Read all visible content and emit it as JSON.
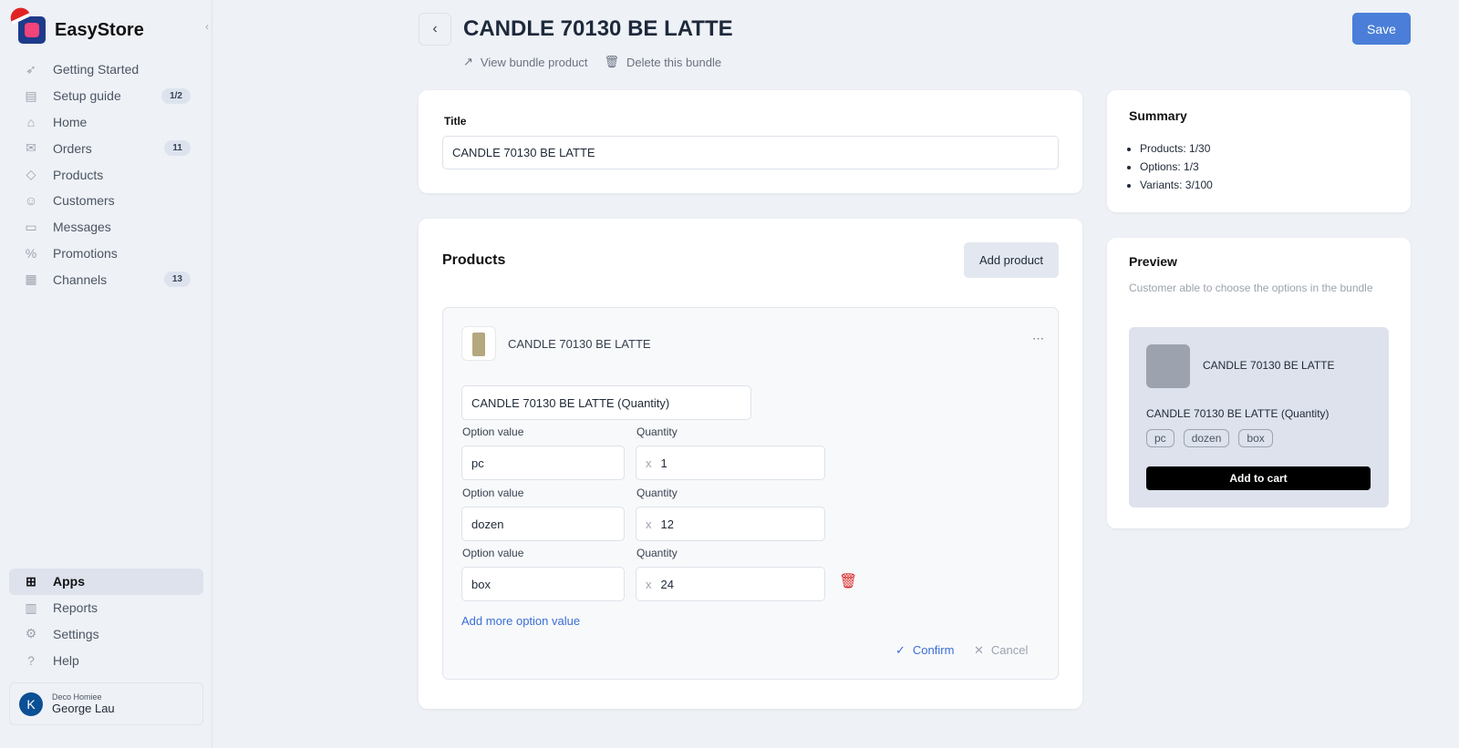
{
  "brand": {
    "name": "EasyStore"
  },
  "sidebar": {
    "items": [
      {
        "label": "Getting Started",
        "icon": "rocket-icon"
      },
      {
        "label": "Setup guide",
        "icon": "checklist-icon",
        "badge": "1/2"
      },
      {
        "label": "Home",
        "icon": "home-icon"
      },
      {
        "label": "Orders",
        "icon": "inbox-icon",
        "badge": "11"
      },
      {
        "label": "Products",
        "icon": "tag-icon"
      },
      {
        "label": "Customers",
        "icon": "user-icon"
      },
      {
        "label": "Messages",
        "icon": "chat-icon"
      },
      {
        "label": "Promotions",
        "icon": "discount-icon"
      },
      {
        "label": "Channels",
        "icon": "store-icon",
        "badge": "13"
      }
    ],
    "bottom": [
      {
        "label": "Apps",
        "icon": "apps-icon",
        "active": true
      },
      {
        "label": "Reports",
        "icon": "bar-chart-icon"
      },
      {
        "label": "Settings",
        "icon": "gear-icon"
      },
      {
        "label": "Help",
        "icon": "help-icon"
      }
    ],
    "user": {
      "initial": "K",
      "store": "Deco Homiee",
      "name": "George Lau"
    }
  },
  "header": {
    "title": "CANDLE 70130 BE LATTE",
    "view": "View bundle product",
    "delete": "Delete this bundle",
    "save": "Save"
  },
  "title_card": {
    "label": "Title",
    "value": "CANDLE 70130 BE LATTE"
  },
  "products": {
    "heading": "Products",
    "add": "Add product",
    "product_name": "CANDLE 70130 BE LATTE",
    "option_name": "CANDLE 70130 BE LATTE (Quantity)",
    "option_label": "Option value",
    "quantity_label": "Quantity",
    "x": "x",
    "rows": [
      {
        "value": "pc",
        "qty": "1"
      },
      {
        "value": "dozen",
        "qty": "12"
      },
      {
        "value": "box",
        "qty": "24"
      }
    ],
    "add_more": "Add more option value",
    "confirm": "Confirm",
    "cancel": "Cancel"
  },
  "summary": {
    "heading": "Summary",
    "items": [
      "Products: 1/30",
      "Options: 1/3",
      "Variants: 3/100"
    ]
  },
  "preview": {
    "heading": "Preview",
    "desc": "Customer able to choose the options in the bundle",
    "product_name": "CANDLE 70130 BE LATTE",
    "option_name": "CANDLE 70130 BE LATTE (Quantity)",
    "chips": [
      "pc",
      "dozen",
      "box"
    ],
    "cart": "Add to cart"
  },
  "colors": {
    "accent": "#4a7ed8",
    "danger": "#dc2626",
    "link": "#3b6fd4"
  }
}
